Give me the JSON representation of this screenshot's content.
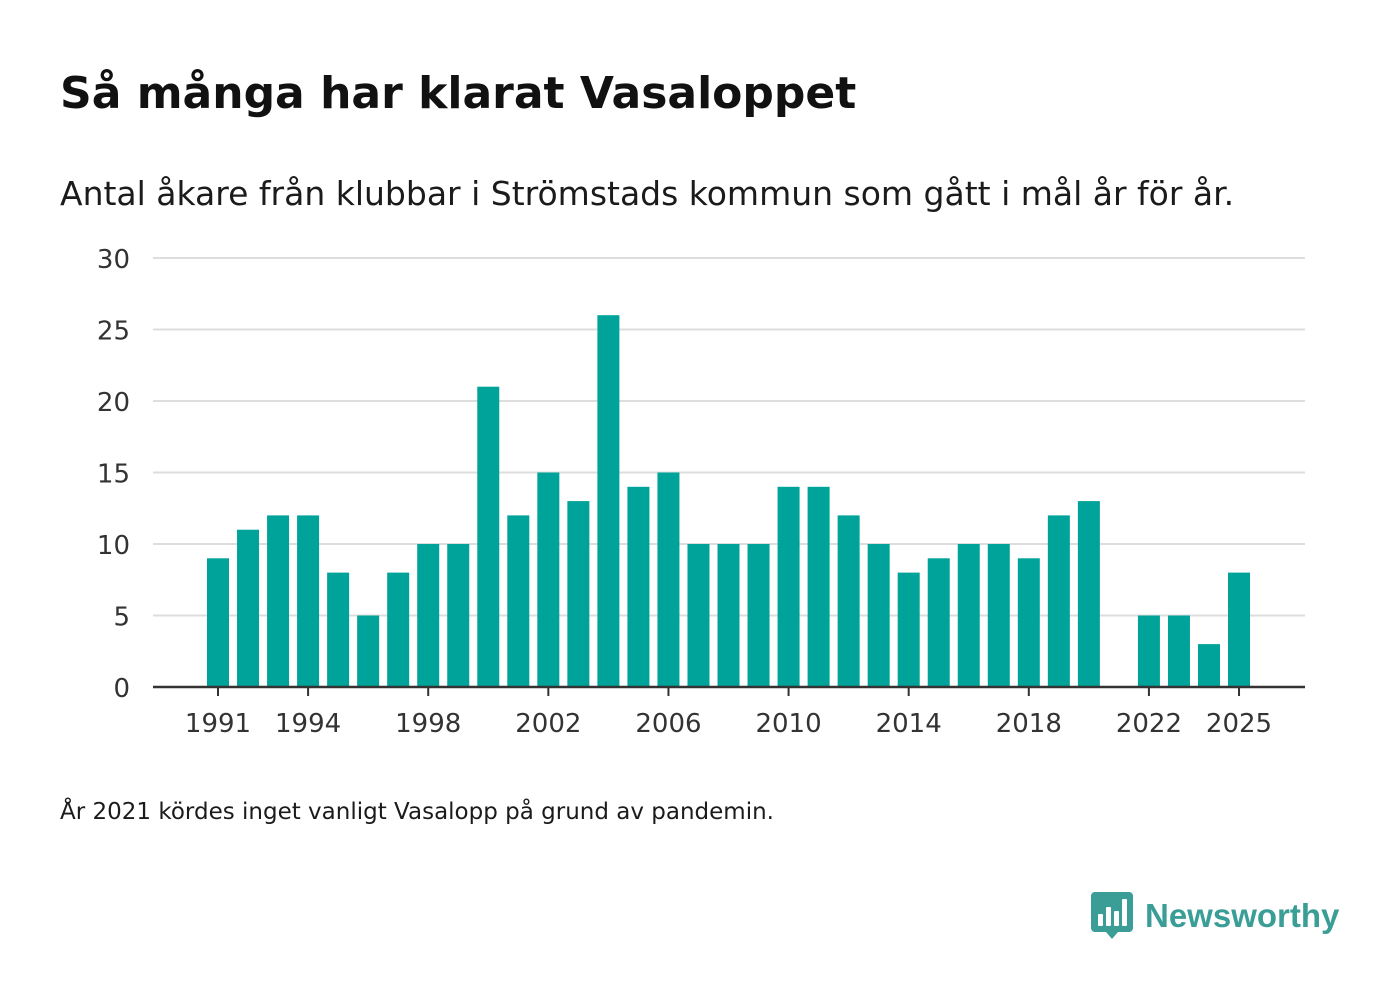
{
  "title": "Så många har klarat Vasaloppet",
  "subtitle": "Antal åkare från klubbar i Strömstads kommun som gått i mål år för år.",
  "footnote": "År 2021 kördes inget vanligt Vasalopp på grund av pandemin.",
  "brand": {
    "name": "Newsworthy",
    "icon": "newsworthy-logo-icon"
  },
  "colors": {
    "bar": "#00a399",
    "grid": "#dddddd",
    "axis": "#333333",
    "brand": "#3a9e97"
  },
  "chart_data": {
    "type": "bar",
    "title": "Så många har klarat Vasaloppet",
    "xlabel": "",
    "ylabel": "",
    "ylim": [
      0,
      30
    ],
    "yticks": [
      0,
      5,
      10,
      15,
      20,
      25,
      30
    ],
    "xtick_labels": [
      "1991",
      "1994",
      "1998",
      "2002",
      "2006",
      "2010",
      "2014",
      "2018",
      "2022",
      "2025"
    ],
    "grid": true,
    "categories": [
      1991,
      1992,
      1993,
      1994,
      1995,
      1996,
      1997,
      1998,
      1999,
      2000,
      2001,
      2002,
      2003,
      2004,
      2005,
      2006,
      2007,
      2008,
      2009,
      2010,
      2011,
      2012,
      2013,
      2014,
      2015,
      2016,
      2017,
      2018,
      2019,
      2020,
      2021,
      2022,
      2023,
      2024,
      2025
    ],
    "values": [
      9,
      11,
      12,
      12,
      8,
      5,
      8,
      10,
      10,
      21,
      12,
      15,
      13,
      26,
      14,
      15,
      10,
      10,
      10,
      14,
      14,
      12,
      10,
      8,
      9,
      10,
      10,
      9,
      12,
      13,
      null,
      5,
      5,
      3,
      8
    ]
  }
}
